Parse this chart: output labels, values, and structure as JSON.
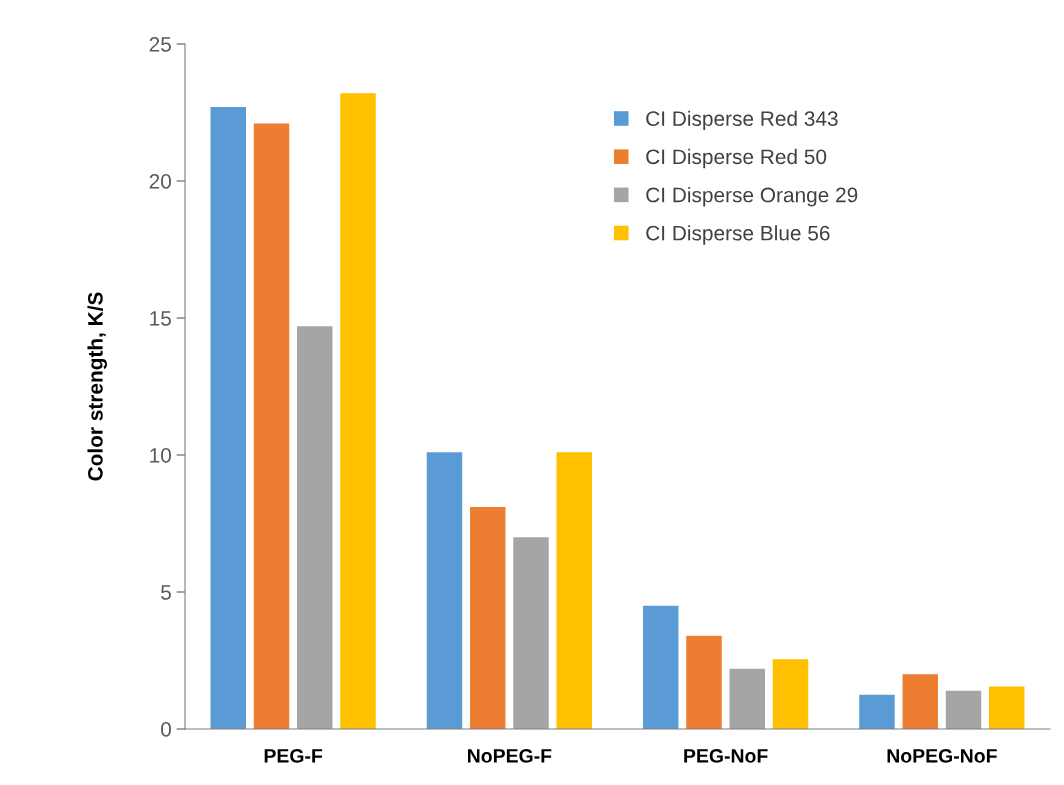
{
  "chart_data": {
    "type": "bar",
    "ylabel": "Color strength, K/S",
    "categories": [
      "PEG-F",
      "NoPEG-F",
      "PEG-NoF",
      "NoPEG-NoF"
    ],
    "series": [
      {
        "name": "CI Disperse Red 343",
        "color": "#5b9bd5",
        "values": [
          22.7,
          10.1,
          4.5,
          1.25
        ]
      },
      {
        "name": "CI Disperse Red 50",
        "color": "#ed7d31",
        "values": [
          22.1,
          8.1,
          3.4,
          2.0
        ]
      },
      {
        "name": "CI Disperse Orange 29",
        "color": "#a5a5a5",
        "values": [
          14.7,
          7.0,
          2.2,
          1.4
        ]
      },
      {
        "name": "CI Disperse Blue 56",
        "color": "#ffc000",
        "values": [
          23.2,
          10.1,
          2.55,
          1.55
        ]
      }
    ],
    "ylim": [
      0,
      25
    ],
    "yticks": [
      0,
      5,
      10,
      15,
      20,
      25
    ],
    "grid": false,
    "legend": "top right"
  }
}
